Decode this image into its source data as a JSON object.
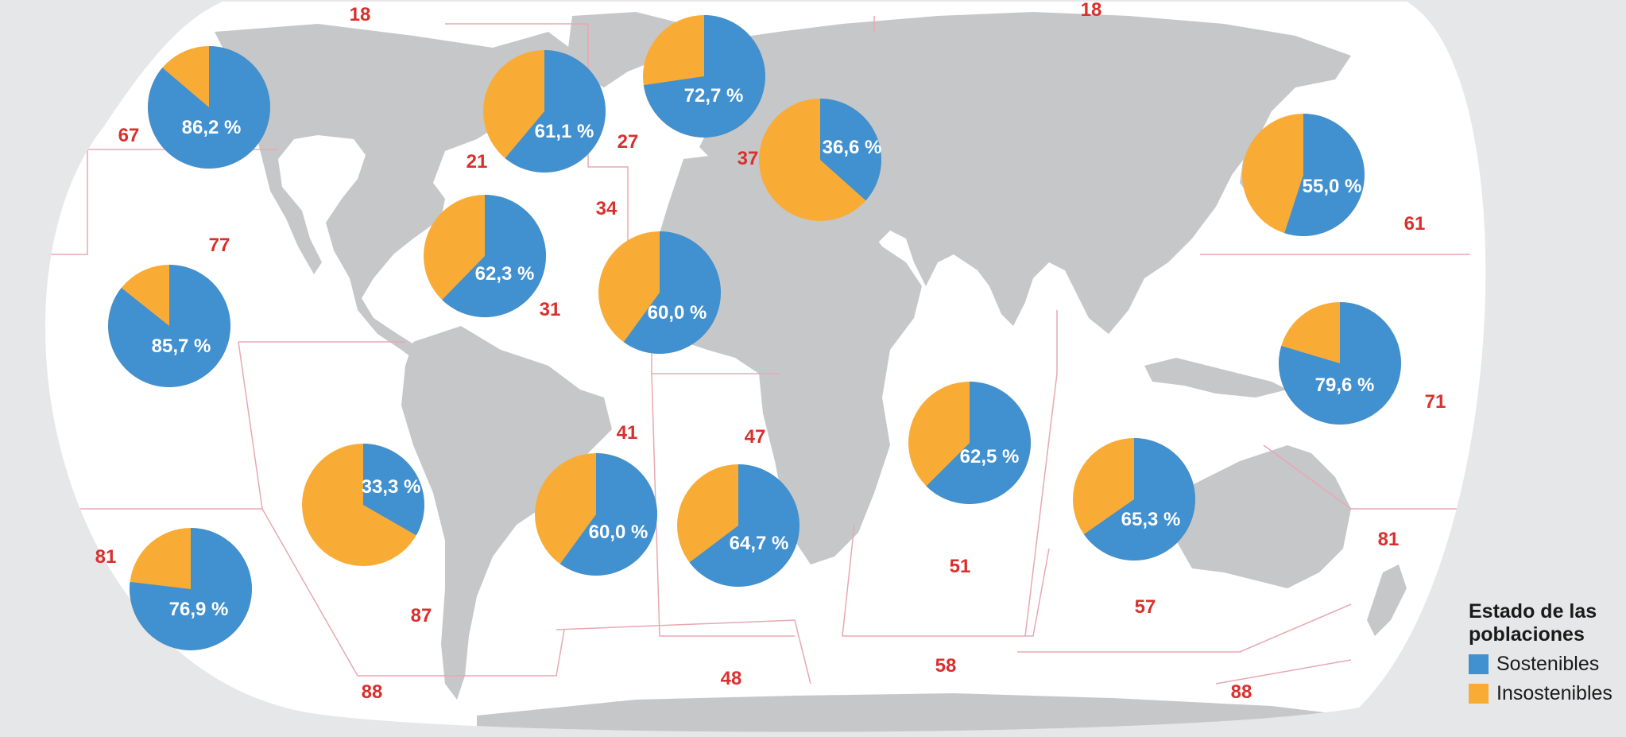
{
  "colors": {
    "sustainable": "#4190d0",
    "unsustainable": "#f9ac35",
    "land": "#c6c7c9",
    "ocean": "#ffffff",
    "background": "#e6e7e8",
    "boundary": "#e8a8b0",
    "area_number": "#d9302e"
  },
  "fishing_areas": [
    {
      "id": "area-18-west",
      "label": "18"
    },
    {
      "id": "area-18-east",
      "label": "18"
    },
    {
      "id": "area-67",
      "label": "67"
    },
    {
      "id": "area-21",
      "label": "21"
    },
    {
      "id": "area-27",
      "label": "27"
    },
    {
      "id": "area-37",
      "label": "37"
    },
    {
      "id": "area-34",
      "label": "34"
    },
    {
      "id": "area-77",
      "label": "77"
    },
    {
      "id": "area-31",
      "label": "31"
    },
    {
      "id": "area-61",
      "label": "61"
    },
    {
      "id": "area-71",
      "label": "71"
    },
    {
      "id": "area-41",
      "label": "41"
    },
    {
      "id": "area-47",
      "label": "47"
    },
    {
      "id": "area-81-west",
      "label": "81"
    },
    {
      "id": "area-81-east",
      "label": "81"
    },
    {
      "id": "area-87",
      "label": "87"
    },
    {
      "id": "area-51",
      "label": "51"
    },
    {
      "id": "area-57",
      "label": "57"
    },
    {
      "id": "area-88-west",
      "label": "88"
    },
    {
      "id": "area-48",
      "label": "48"
    },
    {
      "id": "area-58",
      "label": "58"
    },
    {
      "id": "area-88-east",
      "label": "88"
    }
  ],
  "pies": [
    {
      "area": "67",
      "sustainable_pct": 86.2,
      "label": "86,2 %"
    },
    {
      "area": "21",
      "sustainable_pct": 61.1,
      "label": "61,1 %"
    },
    {
      "area": "27",
      "sustainable_pct": 72.7,
      "label": "72,7 %"
    },
    {
      "area": "37",
      "sustainable_pct": 36.6,
      "label": "36,6 %"
    },
    {
      "area": "61",
      "sustainable_pct": 55.0,
      "label": "55,0 %"
    },
    {
      "area": "31",
      "sustainable_pct": 62.3,
      "label": "62,3 %"
    },
    {
      "area": "34",
      "sustainable_pct": 60.0,
      "label": "60,0 %"
    },
    {
      "area": "77",
      "sustainable_pct": 85.7,
      "label": "85,7 %"
    },
    {
      "area": "71",
      "sustainable_pct": 79.6,
      "label": "79,6 %"
    },
    {
      "area": "51",
      "sustainable_pct": 62.5,
      "label": "62,5 %"
    },
    {
      "area": "57",
      "sustainable_pct": 65.3,
      "label": "65,3 %"
    },
    {
      "area": "87",
      "sustainable_pct": 33.3,
      "label": "33,3 %"
    },
    {
      "area": "41",
      "sustainable_pct": 60.0,
      "label": "60,0 %"
    },
    {
      "area": "47",
      "sustainable_pct": 64.7,
      "label": "64,7 %"
    },
    {
      "area": "81",
      "sustainable_pct": 76.9,
      "label": "76,9 %"
    }
  ],
  "legend": {
    "title_line1": "Estado de las",
    "title_line2": "poblaciones",
    "items": [
      {
        "label": "Sostenibles"
      },
      {
        "label": "Insostenibles"
      }
    ]
  }
}
